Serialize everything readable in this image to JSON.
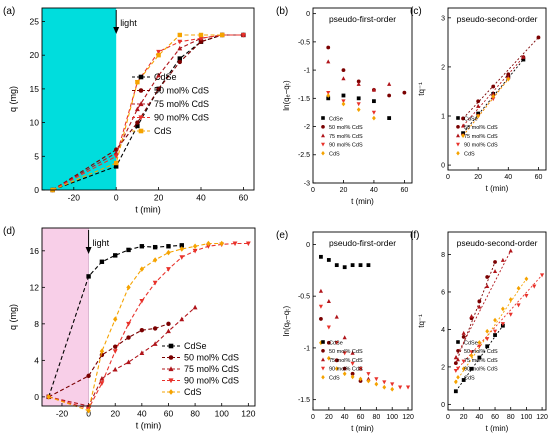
{
  "colors": {
    "cdse": "#000000",
    "m50": "#7a0000",
    "m75": "#b0141a",
    "m90": "#e8322b",
    "cds": "#f5a300",
    "cyan_band": "#00dddd",
    "pink_band": "#f8cfe8"
  },
  "chart_data": [
    {
      "type": "line",
      "panel": "(a)",
      "xlabel": "t (min)",
      "ylabel": "q (mg)",
      "xlim": [
        -35,
        65
      ],
      "ylim": [
        0,
        27
      ],
      "xticks": [
        -20,
        0,
        20,
        40,
        60
      ],
      "yticks": [
        0,
        5,
        10,
        15,
        20,
        25
      ],
      "annotation": "light",
      "band": [
        -35,
        0
      ],
      "legend_position": "right",
      "series": [
        {
          "name": "CdSe",
          "key": "cdse",
          "marker": "square",
          "x": [
            -30,
            0,
            10,
            20,
            30,
            40,
            50,
            60
          ],
          "y": [
            0,
            3.5,
            9.5,
            15,
            19.5,
            22,
            23,
            23
          ]
        },
        {
          "name": "50 mol% CdS",
          "key": "m50",
          "marker": "circle",
          "x": [
            -30,
            0,
            10,
            20,
            30,
            40,
            50,
            60
          ],
          "y": [
            0,
            6,
            10,
            15,
            19,
            22,
            23,
            23
          ]
        },
        {
          "name": "75 mol% CdS",
          "key": "m75",
          "marker": "triangle",
          "x": [
            -30,
            0,
            10,
            20,
            30,
            40,
            50,
            60
          ],
          "y": [
            0,
            5.5,
            12,
            17,
            21,
            22.5,
            23,
            23
          ]
        },
        {
          "name": "90 mol% CdS",
          "key": "m90",
          "marker": "tridown",
          "x": [
            -30,
            0,
            10,
            20,
            30,
            40,
            50,
            60
          ],
          "y": [
            0,
            5,
            16,
            20.5,
            22,
            22.5,
            23,
            23
          ]
        },
        {
          "name": "CdS",
          "key": "cds",
          "marker": "square",
          "x": [
            -30,
            0,
            10,
            20,
            30,
            40,
            50
          ],
          "y": [
            0,
            4,
            16,
            20,
            23,
            23,
            23
          ]
        }
      ]
    },
    {
      "type": "scatter",
      "panel": "(b)",
      "title": "pseudo-first-order",
      "xlabel": "t (min)",
      "ylabel": "ln(qₑ−qₜ)",
      "xlim": [
        0,
        65
      ],
      "ylim": [
        -3.0,
        0.1
      ],
      "xticks": [
        0,
        20,
        40,
        60
      ],
      "yticks": [
        0.0,
        -0.5,
        -1.0,
        -1.5,
        -2.0,
        -2.5,
        -3.0
      ],
      "series": [
        {
          "name": "CdSe",
          "key": "cdse",
          "marker": "square",
          "x": [
            10,
            20,
            30,
            40,
            50
          ],
          "y": [
            -1.5,
            -1.45,
            -1.5,
            -1.55,
            -1.85
          ]
        },
        {
          "name": "50 mol% CdS",
          "key": "m50",
          "marker": "circle",
          "x": [
            10,
            20,
            30,
            40,
            50,
            60
          ],
          "y": [
            -0.6,
            -1.0,
            -1.2,
            -1.35,
            -1.45,
            -1.4
          ]
        },
        {
          "name": "75 mol% CdS",
          "key": "m75",
          "marker": "triangle",
          "x": [
            10,
            20,
            30,
            40,
            50
          ],
          "y": [
            -0.85,
            -1.15,
            -1.25,
            -1.35,
            -1.25
          ]
        },
        {
          "name": "90 mol% CdS",
          "key": "m90",
          "marker": "tridown",
          "x": [
            10,
            20,
            30,
            40
          ],
          "y": [
            -1.4,
            -1.55,
            -1.6,
            -1.75
          ]
        },
        {
          "name": "CdS",
          "key": "cds",
          "marker": "diamond",
          "x": [
            10,
            20,
            30,
            40
          ],
          "y": [
            -1.45,
            -1.6,
            -1.7,
            -1.85
          ]
        }
      ]
    },
    {
      "type": "scatter",
      "panel": "(c)",
      "title": "pseudo-second-order",
      "xlabel": "t (min)",
      "ylabel": "tq⁻¹",
      "xlim": [
        0,
        65
      ],
      "ylim": [
        -0.1,
        3.2
      ],
      "xticks": [
        0,
        20,
        40,
        60
      ],
      "yticks": [
        0,
        1,
        2,
        3
      ],
      "series": [
        {
          "name": "CdSe",
          "key": "cdse",
          "marker": "square",
          "x": [
            10,
            20,
            30,
            40,
            50
          ],
          "y": [
            0.65,
            1.05,
            1.45,
            1.8,
            2.15
          ]
        },
        {
          "name": "50 mol% CdS",
          "key": "m50",
          "marker": "circle",
          "x": [
            10,
            20,
            30,
            40,
            50,
            60
          ],
          "y": [
            0.95,
            1.3,
            1.6,
            1.85,
            2.2,
            2.6
          ]
        },
        {
          "name": "75 mol% CdS",
          "key": "m75",
          "marker": "triangle",
          "x": [
            10,
            20,
            30,
            40,
            50
          ],
          "y": [
            0.8,
            1.2,
            1.45,
            1.8,
            2.2
          ]
        },
        {
          "name": "90 mol% CdS",
          "key": "m90",
          "marker": "tridown",
          "x": [
            10,
            20,
            30,
            40
          ],
          "y": [
            0.6,
            1.0,
            1.35,
            1.75
          ]
        },
        {
          "name": "CdS",
          "key": "cds",
          "marker": "diamond",
          "x": [
            10,
            20,
            30,
            40
          ],
          "y": [
            0.6,
            1.0,
            1.4,
            1.75
          ]
        }
      ],
      "fits": [
        {
          "key": "cdse",
          "x": [
            10,
            50
          ],
          "y": [
            0.65,
            2.15
          ]
        },
        {
          "key": "m50",
          "x": [
            10,
            60
          ],
          "y": [
            0.95,
            2.6
          ]
        },
        {
          "key": "m75",
          "x": [
            10,
            50
          ],
          "y": [
            0.8,
            2.2
          ]
        },
        {
          "key": "m90",
          "x": [
            10,
            40
          ],
          "y": [
            0.6,
            1.75
          ]
        },
        {
          "key": "cds",
          "x": [
            10,
            40
          ],
          "y": [
            0.6,
            1.75
          ]
        }
      ]
    },
    {
      "type": "line",
      "panel": "(d)",
      "xlabel": "t (min)",
      "ylabel": "q (mg)",
      "xlim": [
        -35,
        125
      ],
      "ylim": [
        -1,
        18.5
      ],
      "xticks": [
        -20,
        0,
        20,
        40,
        60,
        80,
        100,
        120
      ],
      "yticks": [
        0,
        4,
        8,
        12,
        16
      ],
      "annotation": "light",
      "band": [
        -35,
        0
      ],
      "legend_position": "bottom-right",
      "series": [
        {
          "name": "CdSe",
          "key": "cdse",
          "marker": "square",
          "x": [
            -30,
            0,
            10,
            20,
            30,
            40,
            50,
            60,
            70
          ],
          "y": [
            0,
            13.2,
            14.8,
            15.5,
            16.1,
            16.5,
            16.4,
            16.5,
            16.6
          ]
        },
        {
          "name": "50 mol% CdS",
          "key": "m50",
          "marker": "circle",
          "x": [
            -30,
            0,
            10,
            20,
            30,
            40,
            50,
            60
          ],
          "y": [
            0,
            2.3,
            4.6,
            5.5,
            6.5,
            7.3,
            7.5,
            8.0
          ]
        },
        {
          "name": "75 mol% CdS",
          "key": "m75",
          "marker": "triangle",
          "x": [
            -30,
            0,
            10,
            20,
            30,
            40,
            50,
            60,
            70,
            80
          ],
          "y": [
            0,
            -1.0,
            2.0,
            3.0,
            3.8,
            4.8,
            5.8,
            7.2,
            8.5,
            9.8
          ]
        },
        {
          "name": "90 mol% CdS",
          "key": "m90",
          "marker": "tridown",
          "x": [
            -30,
            0,
            10,
            20,
            30,
            40,
            50,
            60,
            70,
            80,
            90,
            100,
            110,
            120
          ],
          "y": [
            0,
            -1.3,
            1.5,
            5.0,
            8.0,
            10.5,
            12.5,
            14.0,
            15.3,
            16.0,
            16.5,
            16.7,
            16.8,
            16.8
          ]
        },
        {
          "name": "CdS",
          "key": "cds",
          "marker": "diamond",
          "x": [
            -30,
            0,
            10,
            20,
            30,
            40,
            50,
            60,
            70,
            80,
            90,
            100
          ],
          "y": [
            0,
            -1.5,
            5.0,
            8.5,
            12.0,
            14.0,
            15.0,
            15.8,
            16.2,
            16.5,
            16.8,
            16.8
          ]
        }
      ]
    },
    {
      "type": "scatter",
      "panel": "(e)",
      "title": "pseudo-first-order",
      "xlabel": "t (min)",
      "ylabel": "ln(qₑ−qₜ)",
      "xlim": [
        0,
        125
      ],
      "ylim": [
        -1.6,
        0.12
      ],
      "xticks": [
        0,
        20,
        40,
        60,
        80,
        100,
        120
      ],
      "yticks": [
        0.0,
        -0.5,
        -1.0,
        -1.5
      ],
      "series": [
        {
          "name": "CdSe",
          "key": "cdse",
          "marker": "square",
          "x": [
            10,
            20,
            30,
            40,
            50,
            60,
            70
          ],
          "y": [
            -0.12,
            -0.15,
            -0.2,
            -0.22,
            -0.2,
            -0.2,
            -0.2
          ]
        },
        {
          "name": "50 mol% CdS",
          "key": "m50",
          "marker": "circle",
          "x": [
            10,
            20,
            30,
            40,
            50,
            60
          ],
          "y": [
            -0.72,
            -0.95,
            -1.12,
            -1.2,
            -1.25,
            -1.32
          ]
        },
        {
          "name": "75 mol% CdS",
          "key": "m75",
          "marker": "triangle",
          "x": [
            10,
            20,
            30,
            40,
            50,
            60,
            70
          ],
          "y": [
            -0.45,
            -0.55,
            -0.7,
            -0.9,
            -1.05,
            -1.2,
            -1.3
          ]
        },
        {
          "name": "90 mol% CdS",
          "key": "m90",
          "marker": "tridown",
          "x": [
            10,
            20,
            30,
            40,
            50,
            60,
            70,
            80,
            90,
            100,
            110,
            120
          ],
          "y": [
            -0.6,
            -0.8,
            -0.95,
            -1.05,
            -1.15,
            -1.2,
            -1.25,
            -1.3,
            -1.33,
            -1.35,
            -1.38,
            -1.38
          ]
        },
        {
          "name": "CdS",
          "key": "cds",
          "marker": "diamond",
          "x": [
            10,
            20,
            30,
            40,
            50,
            60,
            70,
            80,
            90,
            100
          ],
          "y": [
            -0.95,
            -1.1,
            -1.2,
            -1.25,
            -1.28,
            -1.3,
            -1.32,
            -1.35,
            -1.38,
            -1.4
          ]
        }
      ]
    },
    {
      "type": "scatter",
      "panel": "(f)",
      "title": "pseudo-second-order",
      "xlabel": "t (min)",
      "ylabel": "tq⁻¹",
      "xlim": [
        0,
        125
      ],
      "ylim": [
        -0.3,
        9.2
      ],
      "xticks": [
        0,
        20,
        40,
        60,
        80,
        100,
        120
      ],
      "yticks": [
        0,
        2,
        4,
        6,
        8
      ],
      "series": [
        {
          "name": "CdSe",
          "key": "cdse",
          "marker": "square",
          "x": [
            10,
            20,
            30,
            40,
            50,
            60,
            70
          ],
          "y": [
            0.7,
            1.3,
            1.9,
            2.5,
            3.1,
            3.7,
            4.2
          ]
        },
        {
          "name": "50 mol% CdS",
          "key": "m50",
          "marker": "circle",
          "x": [
            10,
            20,
            30,
            40,
            50,
            60
          ],
          "y": [
            2.2,
            3.6,
            4.6,
            5.5,
            6.8,
            7.6
          ]
        },
        {
          "name": "75 mol% CdS",
          "key": "m75",
          "marker": "triangle",
          "x": [
            10,
            20,
            30,
            40,
            50,
            60,
            70,
            80
          ],
          "y": [
            2.5,
            3.8,
            4.7,
            5.2,
            6.3,
            7.1,
            7.7,
            8.2
          ]
        },
        {
          "name": "90 mol% CdS",
          "key": "m90",
          "marker": "tridown",
          "x": [
            10,
            20,
            30,
            40,
            50,
            60,
            70,
            80,
            90,
            100,
            110,
            120
          ],
          "y": [
            1.8,
            2.3,
            2.8,
            3.1,
            3.5,
            3.9,
            4.3,
            4.8,
            5.3,
            5.8,
            6.3,
            6.9
          ]
        },
        {
          "name": "CdS",
          "key": "cds",
          "marker": "diamond",
          "x": [
            10,
            20,
            30,
            40,
            50,
            60,
            70,
            80,
            90,
            100
          ],
          "y": [
            1.2,
            1.9,
            2.6,
            3.3,
            3.9,
            4.5,
            5.1,
            5.6,
            6.2,
            6.7
          ]
        }
      ],
      "fits": [
        {
          "key": "cdse",
          "x": [
            10,
            70
          ],
          "y": [
            0.7,
            4.2
          ]
        },
        {
          "key": "m50",
          "x": [
            10,
            60
          ],
          "y": [
            2.2,
            7.6
          ]
        },
        {
          "key": "m75",
          "x": [
            10,
            80
          ],
          "y": [
            2.5,
            8.2
          ]
        },
        {
          "key": "m90",
          "x": [
            10,
            120
          ],
          "y": [
            1.8,
            6.9
          ]
        },
        {
          "key": "cds",
          "x": [
            10,
            100
          ],
          "y": [
            1.2,
            6.7
          ]
        }
      ]
    }
  ]
}
